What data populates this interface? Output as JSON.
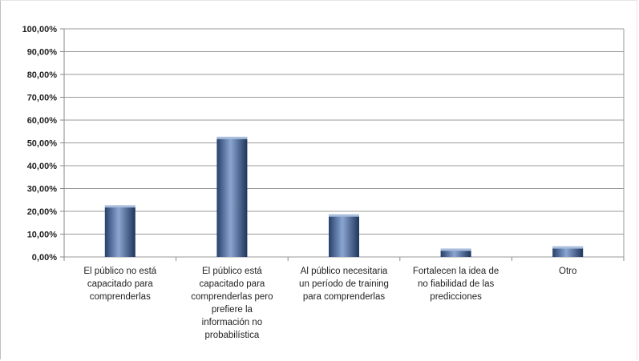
{
  "chart_data": {
    "type": "bar",
    "title": "",
    "xlabel": "",
    "ylabel": "",
    "categories": [
      "El público no está capacitado para comprenderlas",
      "El público está capacitado para comprenderlas pero prefiere la información no probabilística",
      "Al público necesitaria un período de training para comprenderlas",
      "Fortalecen la idea de no fiabilidad de las predicciones",
      "Otro"
    ],
    "category_lines": [
      [
        "El público no está",
        "capacitado para",
        "comprenderlas"
      ],
      [
        "El público está",
        "capacitado para",
        "comprenderlas pero",
        "prefiere la",
        "información no",
        "probabilística"
      ],
      [
        "Al público necesitaria",
        "un período de training",
        "para comprenderlas"
      ],
      [
        "Fortalecen la idea de",
        "no fiabilidad de las",
        "predicciones"
      ],
      [
        "Otro"
      ]
    ],
    "values": [
      22,
      52,
      18,
      3,
      4
    ],
    "ylim": [
      0,
      100
    ],
    "yticks": [
      0,
      10,
      20,
      30,
      40,
      50,
      60,
      70,
      80,
      90,
      100
    ],
    "ytick_labels": [
      "0,00%",
      "10,00%",
      "20,00%",
      "30,00%",
      "40,00%",
      "50,00%",
      "60,00%",
      "70,00%",
      "80,00%",
      "90,00%",
      "100,00%"
    ],
    "grid": true,
    "legend": "none",
    "bar_color": "#3b5a8c"
  }
}
